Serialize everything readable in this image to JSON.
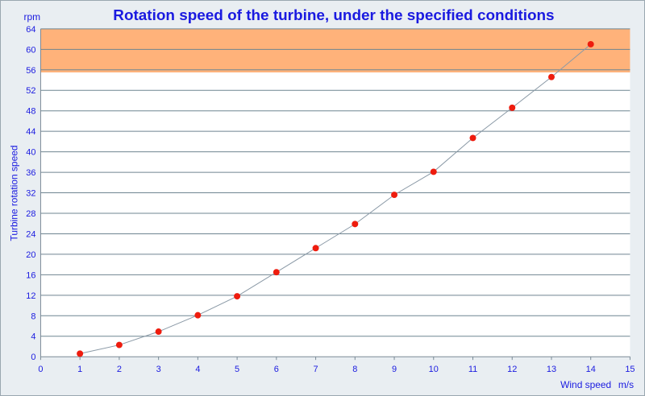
{
  "chart_data": {
    "type": "line",
    "title": "Rotation speed of the turbine, under the specified conditions",
    "xlabel": "Wind speed",
    "x_unit": "m/s",
    "ylabel": "Turbine rotation speed",
    "y_unit": "rpm",
    "xlim": [
      0,
      15
    ],
    "ylim": [
      0,
      64
    ],
    "x_ticks": [
      0,
      1,
      2,
      3,
      4,
      5,
      6,
      7,
      8,
      9,
      10,
      11,
      12,
      13,
      14,
      15
    ],
    "y_ticks": [
      0,
      4,
      8,
      12,
      16,
      20,
      24,
      28,
      32,
      36,
      40,
      44,
      48,
      52,
      56,
      60,
      64
    ],
    "grid": "horizontal",
    "highlight_band": {
      "y_from": 55.5,
      "y_to": 64,
      "color": "#ffb27a"
    },
    "series": [
      {
        "marker_color": "#ee1c0e",
        "line_color": "#8a99a6",
        "x": [
          1,
          2,
          3,
          4,
          5,
          6,
          7,
          8,
          9,
          10,
          11,
          12,
          13,
          14
        ],
        "y": [
          0.6,
          2.3,
          4.9,
          8.1,
          11.8,
          16.5,
          21.2,
          25.9,
          31.6,
          36.1,
          42.7,
          48.6,
          54.6,
          61.0
        ]
      }
    ]
  }
}
